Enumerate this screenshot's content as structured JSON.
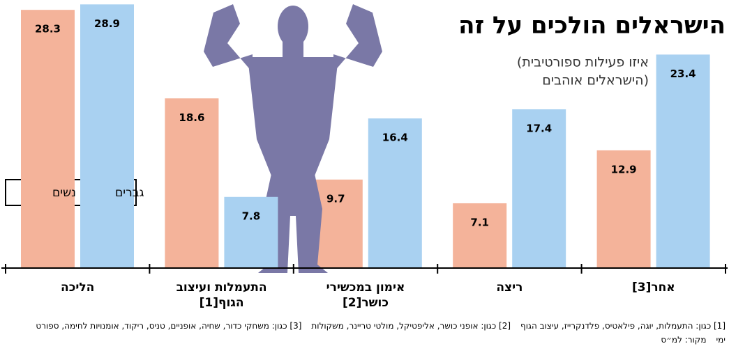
{
  "chart_data": {
    "type": "bar",
    "title": "הישראלים הולכים על זה",
    "subtitle": [
      "(איזו פעילות ספורטיבית",
      "הישראלים אוהבים)"
    ],
    "categories": [
      "הליכה",
      "התעמלות ועיצוב הגוף[1]",
      "אימון במכשירי כושר[2]",
      "ריצה",
      "אחר[3]"
    ],
    "series": [
      {
        "name": "נשים",
        "color": "#f4b39a",
        "values": [
          28.3,
          18.6,
          9.7,
          7.1,
          12.9
        ]
      },
      {
        "name": "גברים",
        "color": "#a9d1f1",
        "values": [
          28.9,
          7.8,
          16.4,
          17.4,
          23.4
        ]
      }
    ],
    "ylim": [
      0,
      29
    ],
    "notes": [
      "[1] כגון: התעמלות, יוגה, פילאטיס, פלדנקרייז, עיצוב הגוף",
      "[2] כגון: אופני כושר, אליפטיקל, מולטי טריינר, משקולות",
      "[3] כגון: משחקי כדור, שחיה, אופניים, טניס, ריקוד, אומנויות לחימה, ספורט ימי"
    ],
    "source": "מקור: למ״ס"
  }
}
